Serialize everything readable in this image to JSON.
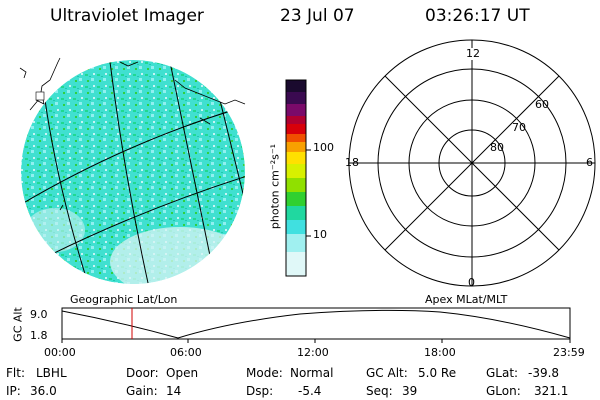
{
  "header": {
    "title": "Ultraviolet Imager",
    "date": "23 Jul 07",
    "time": "03:26:17 UT"
  },
  "colorbar": {
    "unit_label": "photon cm⁻²s⁻¹",
    "ticks": [
      "100",
      "10"
    ],
    "colors": [
      "#1a0a2e",
      "#3a0a50",
      "#7a0a6a",
      "#b00030",
      "#d8000a",
      "#f05000",
      "#f8a000",
      "#ffe000",
      "#d8f000",
      "#90e000",
      "#30d030",
      "#20d8a0",
      "#40e0e0",
      "#a0f0f0",
      "#e0f8f8"
    ]
  },
  "geo_image": {
    "caption": "Geographic Lat/Lon"
  },
  "polar_plot": {
    "caption": "Apex MLat/MLT",
    "mlt_labels": {
      "top": "12",
      "left": "18",
      "right": "6",
      "bottom": "0"
    },
    "lat_labels": [
      "60",
      "70",
      "80"
    ]
  },
  "altitude_plot": {
    "ylabel": "GC Alt",
    "yticks": [
      "9.0",
      "1.8"
    ],
    "xticks": [
      "00:00",
      "06:00",
      "12:00",
      "18:00",
      "23:59"
    ]
  },
  "info": {
    "flt_label": "Flt:",
    "flt_value": "LBHL",
    "ip_label": "IP:",
    "ip_value": "36.0",
    "door_label": "Door:",
    "door_value": "Open",
    "gain_label": "Gain:",
    "gain_value": "14",
    "mode_label": "Mode:",
    "mode_value": "Normal",
    "dsp_label": "Dsp:",
    "dsp_value": "-5.4",
    "gcalt_label": "GC Alt:",
    "gcalt_value": "5.0 Re",
    "seq_label": "Seq:",
    "seq_value": "39",
    "glat_label": "GLat:",
    "glat_value": "-39.8",
    "glon_label": "GLon:",
    "glon_value": "321.1"
  }
}
